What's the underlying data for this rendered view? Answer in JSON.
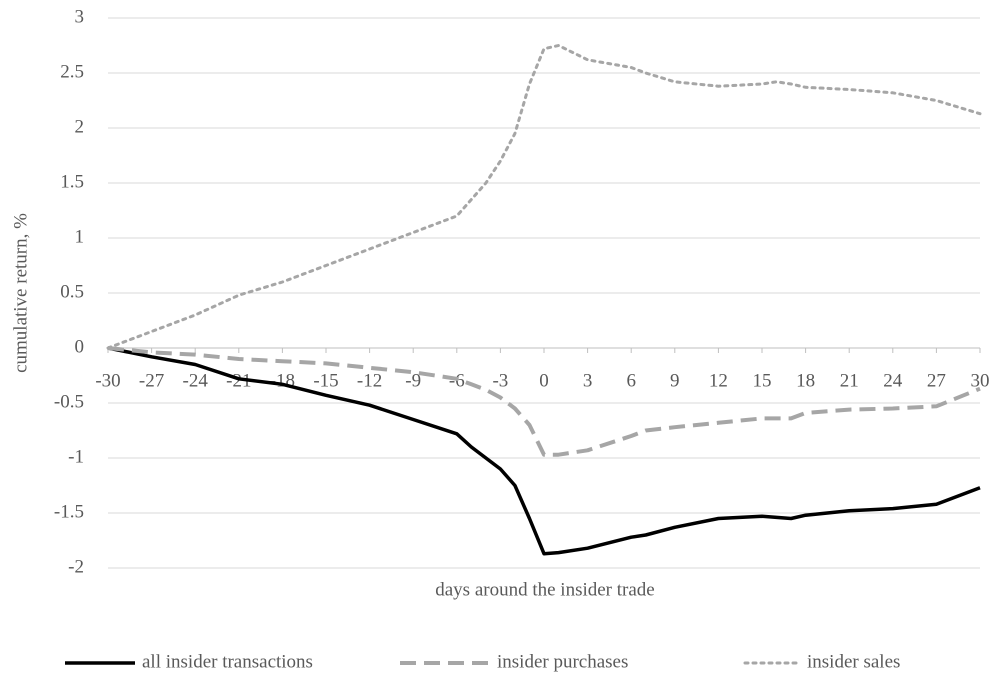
{
  "chart_data": {
    "type": "line",
    "ylabel": "cumulative return, %",
    "xlabel": "days around the insider trade",
    "x": [
      -30,
      -27,
      -24,
      -21,
      -18,
      -15,
      -12,
      -9,
      -6,
      -5,
      -4,
      -3,
      -2,
      -1,
      0,
      1,
      3,
      6,
      7,
      9,
      12,
      15,
      16,
      17,
      18,
      21,
      24,
      27,
      30
    ],
    "series": [
      {
        "name": "all insider transactions",
        "color": "#000000",
        "dash": "solid",
        "values": [
          0,
          -0.08,
          -0.15,
          -0.28,
          -0.33,
          -0.43,
          -0.52,
          -0.65,
          -0.78,
          -0.9,
          -1.0,
          -1.1,
          -1.25,
          -1.55,
          -1.87,
          -1.86,
          -1.82,
          -1.72,
          -1.7,
          -1.63,
          -1.55,
          -1.53,
          -1.54,
          -1.55,
          -1.52,
          -1.48,
          -1.46,
          -1.42,
          -1.27
        ]
      },
      {
        "name": "insider purchases",
        "color": "#a6a6a6",
        "dash": "dashed",
        "values": [
          0,
          -0.04,
          -0.06,
          -0.1,
          -0.12,
          -0.14,
          -0.18,
          -0.22,
          -0.28,
          -0.33,
          -0.38,
          -0.45,
          -0.55,
          -0.7,
          -0.97,
          -0.97,
          -0.93,
          -0.8,
          -0.75,
          -0.72,
          -0.68,
          -0.64,
          -0.64,
          -0.64,
          -0.59,
          -0.56,
          -0.55,
          -0.53,
          -0.37
        ]
      },
      {
        "name": "insider sales",
        "color": "#a6a6a6",
        "dash": "dotted",
        "values": [
          0,
          0.15,
          0.3,
          0.48,
          0.6,
          0.75,
          0.9,
          1.05,
          1.2,
          1.35,
          1.5,
          1.7,
          1.95,
          2.4,
          2.72,
          2.75,
          2.62,
          2.55,
          2.5,
          2.42,
          2.38,
          2.4,
          2.42,
          2.4,
          2.37,
          2.35,
          2.32,
          2.25,
          2.13
        ]
      }
    ],
    "xlim": [
      -30,
      30
    ],
    "ylim": [
      -2,
      3
    ],
    "xticks": [
      -30,
      -27,
      -24,
      -21,
      -18,
      -15,
      -12,
      -9,
      -6,
      -3,
      0,
      3,
      6,
      9,
      12,
      15,
      18,
      21,
      24,
      27,
      30
    ],
    "yticks": [
      3,
      2.5,
      2,
      1.5,
      1,
      0.5,
      0,
      -0.5,
      -1,
      -1.5,
      -2
    ],
    "grid": true,
    "legend": "bottom"
  }
}
